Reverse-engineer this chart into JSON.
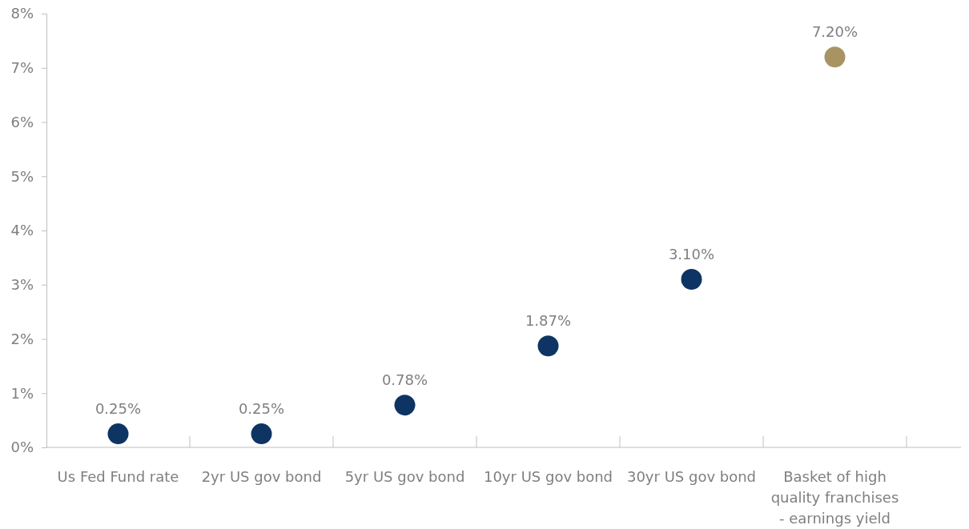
{
  "chart_data": {
    "type": "scatter",
    "categories": [
      "Us Fed Fund rate",
      "2yr US gov bond",
      "5yr US gov bond",
      "10yr US gov bond",
      "30yr US gov bond",
      "Basket of high quality franchises - earnings yield"
    ],
    "values": [
      0.25,
      0.25,
      0.78,
      1.87,
      3.1,
      7.2
    ],
    "colors": [
      "#0e3463",
      "#0e3463",
      "#0e3463",
      "#0e3463",
      "#0e3463",
      "#a89463"
    ],
    "value_labels": [
      "0.25%",
      "0.25%",
      "0.78%",
      "1.87%",
      "3.10%",
      "7.20%"
    ],
    "ylim": [
      0,
      8
    ],
    "yticks": [
      {
        "value": 0,
        "label": "0%"
      },
      {
        "value": 1,
        "label": "1%"
      },
      {
        "value": 2,
        "label": "2%"
      },
      {
        "value": 3,
        "label": "3%"
      },
      {
        "value": 4,
        "label": "4%"
      },
      {
        "value": 5,
        "label": "5%"
      },
      {
        "value": 6,
        "label": "6%"
      },
      {
        "value": 7,
        "label": "7%"
      },
      {
        "value": 8,
        "label": "8%"
      }
    ],
    "marker": "circle"
  }
}
